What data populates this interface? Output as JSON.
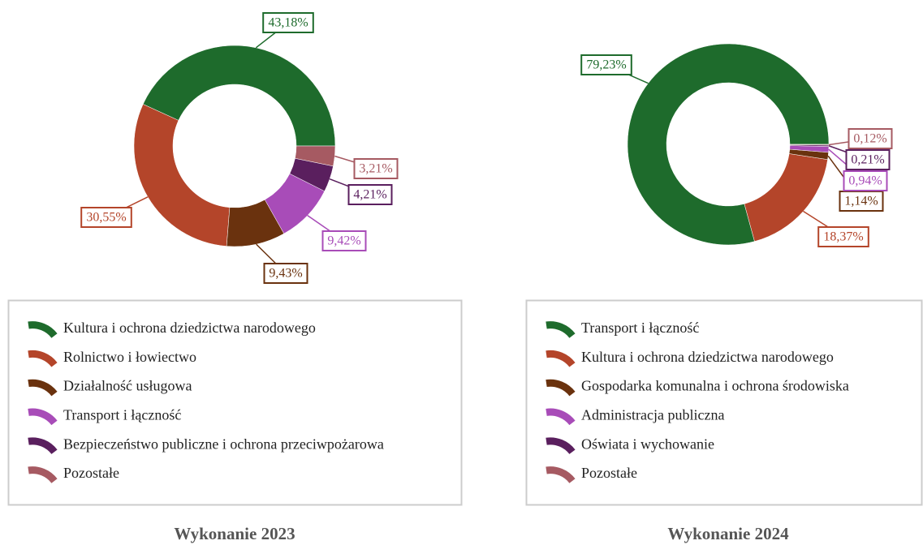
{
  "chart_data": [
    {
      "type": "donut",
      "title": "Wykonanie 2023",
      "categories": [
        "Kultura i ochrona dziedzictwa narodowego",
        "Rolnictwo i łowiectwo",
        "Działalność usługowa",
        "Transport i łączność",
        "Bezpieczeństwo publiczne i ochrona przeciwpożarowa",
        "Pozostałe"
      ],
      "values": [
        43.18,
        30.55,
        9.43,
        9.42,
        4.21,
        3.21
      ],
      "value_labels": [
        "43,18%",
        "30,55%",
        "9,43%",
        "9,42%",
        "4,21%",
        "3,21%"
      ],
      "colors": [
        "#1e6b2c",
        "#b4452a",
        "#6a320e",
        "#a84cb8",
        "#5a1f5e",
        "#a65a62"
      ]
    },
    {
      "type": "donut",
      "title": "Wykonanie 2024",
      "categories": [
        "Transport i łączność",
        "Kultura i ochrona dziedzictwa narodowego",
        "Gospodarka komunalna i ochrona środowiska",
        "Administracja publiczna",
        "Oświata i wychowanie",
        "Pozostałe"
      ],
      "values": [
        79.23,
        18.37,
        1.14,
        0.94,
        0.21,
        0.12
      ],
      "value_labels": [
        "79,23%",
        "18,37%",
        "1,14%",
        "0,94%",
        "0,21%",
        "0,12%"
      ],
      "colors": [
        "#1e6b2c",
        "#b4452a",
        "#6a320e",
        "#a84cb8",
        "#5a1f5e",
        "#a65a62"
      ]
    }
  ]
}
